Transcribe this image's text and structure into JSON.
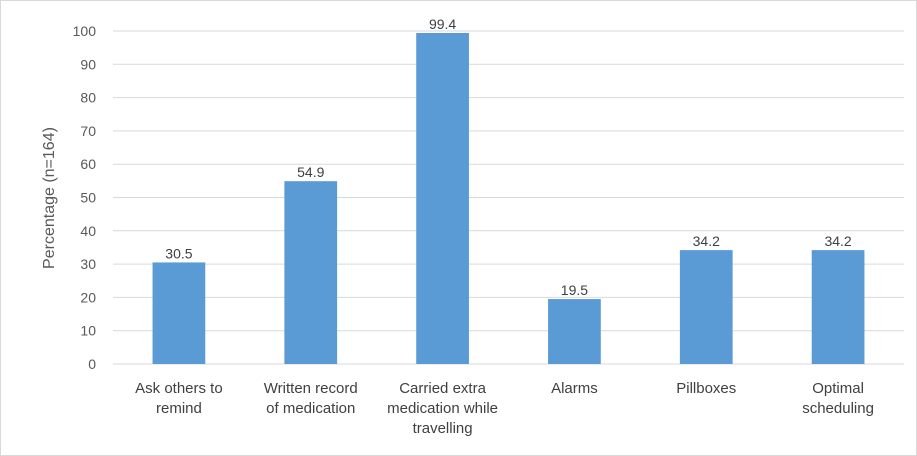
{
  "chart_data": {
    "type": "bar",
    "title": "",
    "xlabel": "",
    "ylabel": "Percentage (n=164)",
    "ylim": [
      0,
      100
    ],
    "yticks": [
      0,
      10,
      20,
      30,
      40,
      50,
      60,
      70,
      80,
      90,
      100
    ],
    "grid": true,
    "legend": "none",
    "bar_color": "#5b9bd5",
    "grid_color": "#d9d9d9",
    "categories": [
      [
        "Ask others to",
        "remind"
      ],
      [
        "Written record",
        "of medication"
      ],
      [
        "Carried extra",
        "medication while",
        "travelling"
      ],
      [
        "Alarms"
      ],
      [
        "Pillboxes"
      ],
      [
        "Optimal",
        "scheduling"
      ]
    ],
    "values": [
      30.5,
      54.9,
      99.4,
      19.5,
      34.2,
      34.2
    ]
  }
}
